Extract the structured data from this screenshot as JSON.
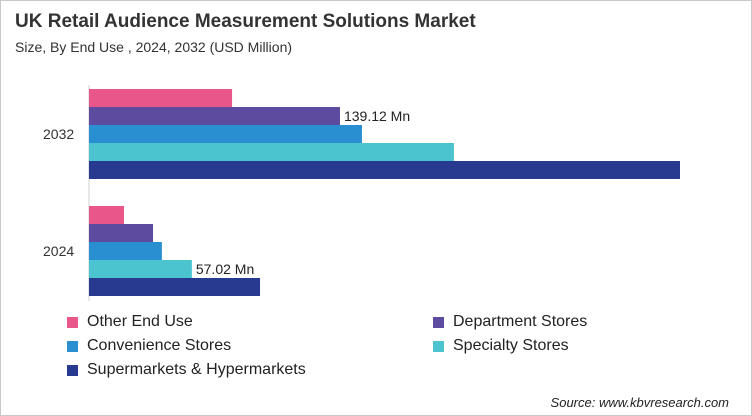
{
  "chart_data": {
    "type": "bar",
    "orientation": "horizontal",
    "title": "UK Retail Audience Measurement Solutions Market",
    "subtitle": "Size, By End Use , 2024, 2032 (USD Million)",
    "categories": [
      "2032",
      "2024"
    ],
    "series": [
      {
        "name": "Other End Use",
        "color": "#e9578a",
        "values": [
          79.3,
          19.4
        ]
      },
      {
        "name": "Department Stores",
        "color": "#5c4b9f",
        "values": [
          139.12,
          35.5
        ]
      },
      {
        "name": "Convenience Stores",
        "color": "#2a8fd0",
        "values": [
          151.3,
          40.4
        ]
      },
      {
        "name": "Specialty Stores",
        "color": "#4cc4cf",
        "values": [
          202.3,
          57.02
        ]
      },
      {
        "name": "Supermarkets & Hypermarkets",
        "color": "#283a8f",
        "values": [
          327.6,
          94.8
        ]
      }
    ],
    "data_labels": [
      {
        "category": "2032",
        "series": "Department Stores",
        "text": "139.12 Mn"
      },
      {
        "category": "2024",
        "series": "Specialty Stores",
        "text": "57.02 Mn"
      }
    ],
    "xlim": [
      0,
      330
    ],
    "grid": false,
    "legend_position": "bottom"
  },
  "source": "Source: www.kbvresearch.com"
}
